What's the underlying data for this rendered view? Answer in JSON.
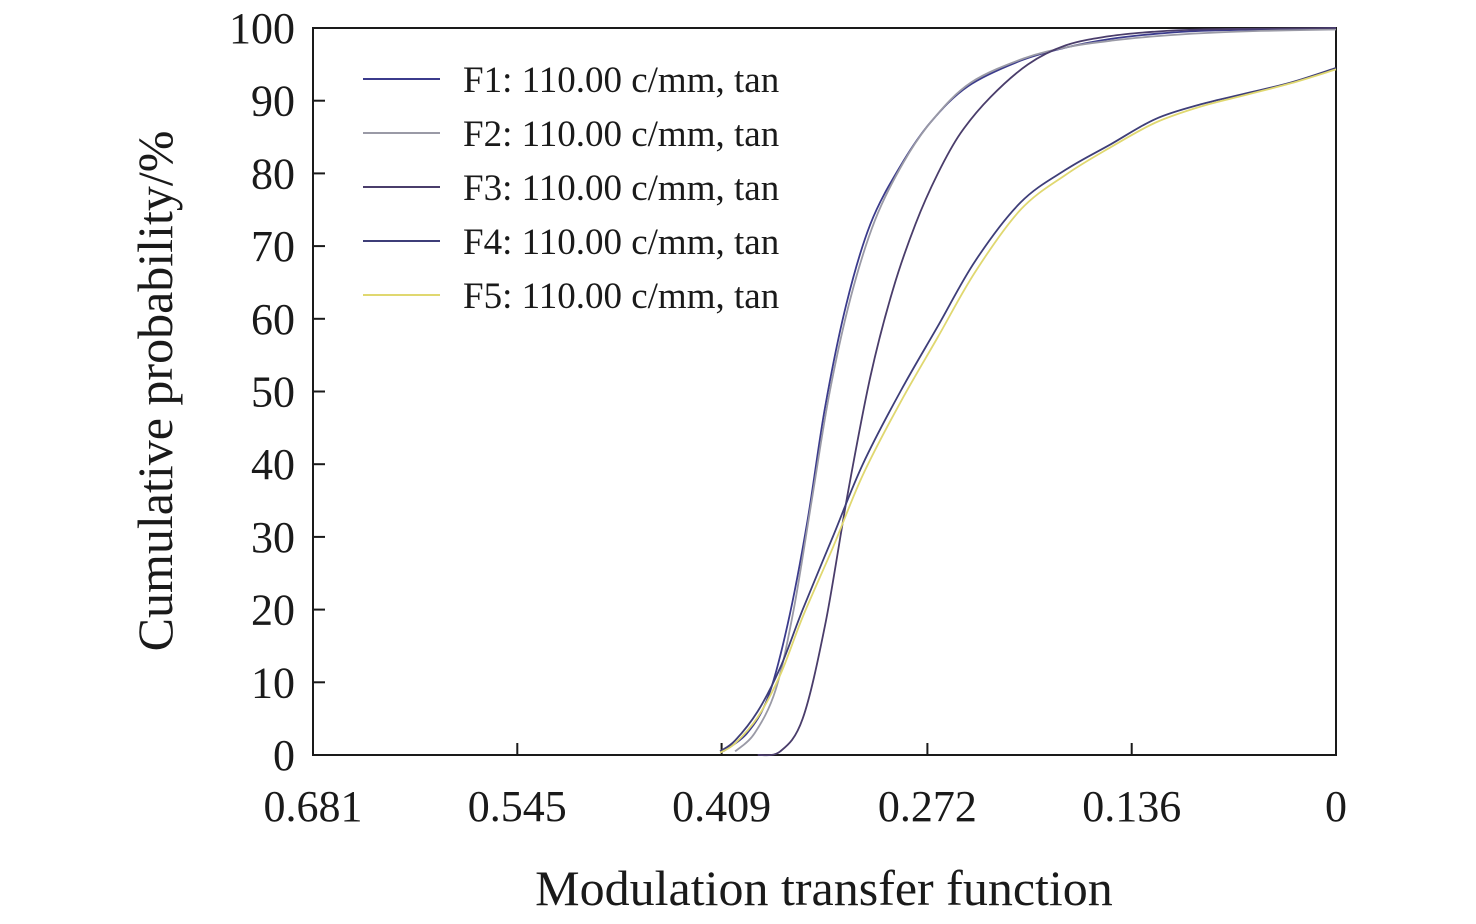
{
  "chart_data": {
    "type": "line",
    "title": "",
    "xlabel": "Modulation transfer function",
    "ylabel": "Cumulative probability/%",
    "x_reversed": true,
    "xlim": [
      0.681,
      0
    ],
    "ylim": [
      0,
      100
    ],
    "x_ticks": [
      0.681,
      0.545,
      0.409,
      0.272,
      0.136,
      0
    ],
    "x_tick_labels": [
      "0.681",
      "0.545",
      "0.409",
      "0.272",
      "0.136",
      "0"
    ],
    "y_ticks": [
      0,
      10,
      20,
      30,
      40,
      50,
      60,
      70,
      80,
      90,
      100
    ],
    "y_tick_labels": [
      "0",
      "10",
      "20",
      "30",
      "40",
      "50",
      "60",
      "70",
      "80",
      "90",
      "100"
    ],
    "grid": false,
    "legend_position": "top-left",
    "series": [
      {
        "name": "F1: 110.00 c/mm, tan",
        "color": "#3b3b8c",
        "x": [
          0.408,
          0.392,
          0.378,
          0.365,
          0.352,
          0.34,
          0.326,
          0.31,
          0.29,
          0.27,
          0.245,
          0.21,
          0.18,
          0.15,
          0.12,
          0.09,
          0.05,
          0.0
        ],
        "y": [
          0.5,
          3,
          8,
          18,
          32,
          48,
          62,
          73,
          81,
          87,
          92,
          95.5,
          97.3,
          98.5,
          99.2,
          99.6,
          99.8,
          100
        ]
      },
      {
        "name": "F2: 110.00 c/mm, tan",
        "color": "#9a9aa6",
        "x": [
          0.4,
          0.387,
          0.373,
          0.361,
          0.349,
          0.337,
          0.323,
          0.307,
          0.288,
          0.268,
          0.243,
          0.208,
          0.178,
          0.148,
          0.118,
          0.088,
          0.05,
          0.0
        ],
        "y": [
          0.5,
          3,
          9,
          20,
          35,
          50,
          63,
          73.5,
          81.5,
          87.5,
          92.5,
          95.8,
          97.4,
          98.3,
          98.9,
          99.3,
          99.6,
          99.8
        ]
      },
      {
        "name": "F3: 110.00 c/mm, tan",
        "color": "#4a3d6b",
        "x": [
          0.385,
          0.37,
          0.355,
          0.34,
          0.325,
          0.31,
          0.295,
          0.28,
          0.265,
          0.25,
          0.23,
          0.205,
          0.18,
          0.15,
          0.12,
          0.09,
          0.05,
          0.0
        ],
        "y": [
          0,
          0.5,
          5,
          18,
          36,
          52,
          64,
          73,
          80,
          85.5,
          90.5,
          95,
          97.6,
          98.9,
          99.5,
          99.8,
          99.9,
          100
        ]
      },
      {
        "name": "F4: 110.00 c/mm, tan",
        "color": "#3e3e78",
        "x": [
          0.41,
          0.4,
          0.385,
          0.37,
          0.355,
          0.335,
          0.315,
          0.29,
          0.265,
          0.24,
          0.21,
          0.18,
          0.15,
          0.12,
          0.09,
          0.06,
          0.03,
          0.0
        ],
        "y": [
          0.5,
          2,
          6,
          12,
          20,
          30,
          40,
          50,
          59,
          68,
          76,
          80.5,
          84,
          87.5,
          89.5,
          91,
          92.5,
          94.5
        ]
      },
      {
        "name": "F5: 110.00 c/mm, tan",
        "color": "#e0d870",
        "x": [
          0.41,
          0.4,
          0.385,
          0.37,
          0.355,
          0.335,
          0.315,
          0.29,
          0.265,
          0.24,
          0.21,
          0.18,
          0.15,
          0.12,
          0.09,
          0.06,
          0.03,
          0.0
        ],
        "y": [
          0.3,
          1.6,
          5.2,
          11,
          19,
          28.5,
          38.5,
          48.5,
          57.5,
          66.5,
          75,
          79.8,
          83.6,
          87,
          89.2,
          90.8,
          92.4,
          94.3
        ]
      }
    ]
  }
}
